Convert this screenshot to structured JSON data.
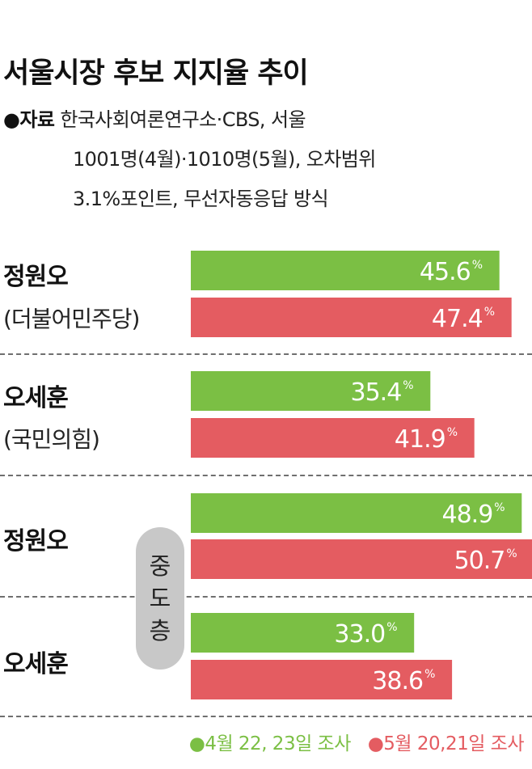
{
  "title": "서울시장 후보 지지율 추이",
  "source": {
    "label": "●자료",
    "lines": [
      "한국사회여론연구소·CBS, 서울",
      "1001명(4월)·1010명(5월), 오차범위",
      "3.1%포인트, 무선자동응답 방식"
    ]
  },
  "colors": {
    "april": "#7bbf44",
    "may": "#e45c61",
    "divider": "#6f6f6f",
    "pill": "#c8c8c8"
  },
  "groups": [
    {
      "name": "정원오",
      "party": "(더불어민주당)"
    },
    {
      "name": "오세훈",
      "party": "(국민의힘)"
    },
    {
      "name": "정원오",
      "party": ""
    },
    {
      "name": "오세훈",
      "party": ""
    }
  ],
  "subgroup_label": "중도층",
  "legend": [
    {
      "label": "●4월 22, 23일 조사",
      "color": "#7bbf44"
    },
    {
      "label": "●5월 20,21일 조사",
      "color": "#e45c61"
    }
  ],
  "chart_data": {
    "type": "bar",
    "orientation": "horizontal",
    "title": "서울시장 후보 지지율 추이",
    "categories": [
      "정원오 (더불어민주당)",
      "오세훈 (국민의힘)",
      "정원오 (중도층)",
      "오세훈 (중도층)"
    ],
    "unit": "%",
    "series": [
      {
        "name": "4월 22, 23일 조사",
        "color": "#7bbf44",
        "values": [
          45.6,
          35.4,
          48.9,
          33.0
        ],
        "labels": [
          "45.6",
          "35.4",
          "48.9",
          "33.0"
        ]
      },
      {
        "name": "5월 20,21일 조사",
        "color": "#e45c61",
        "values": [
          47.4,
          41.9,
          50.7,
          38.6
        ],
        "labels": [
          "47.4",
          "41.9",
          "50.7",
          "38.6"
        ]
      }
    ]
  }
}
